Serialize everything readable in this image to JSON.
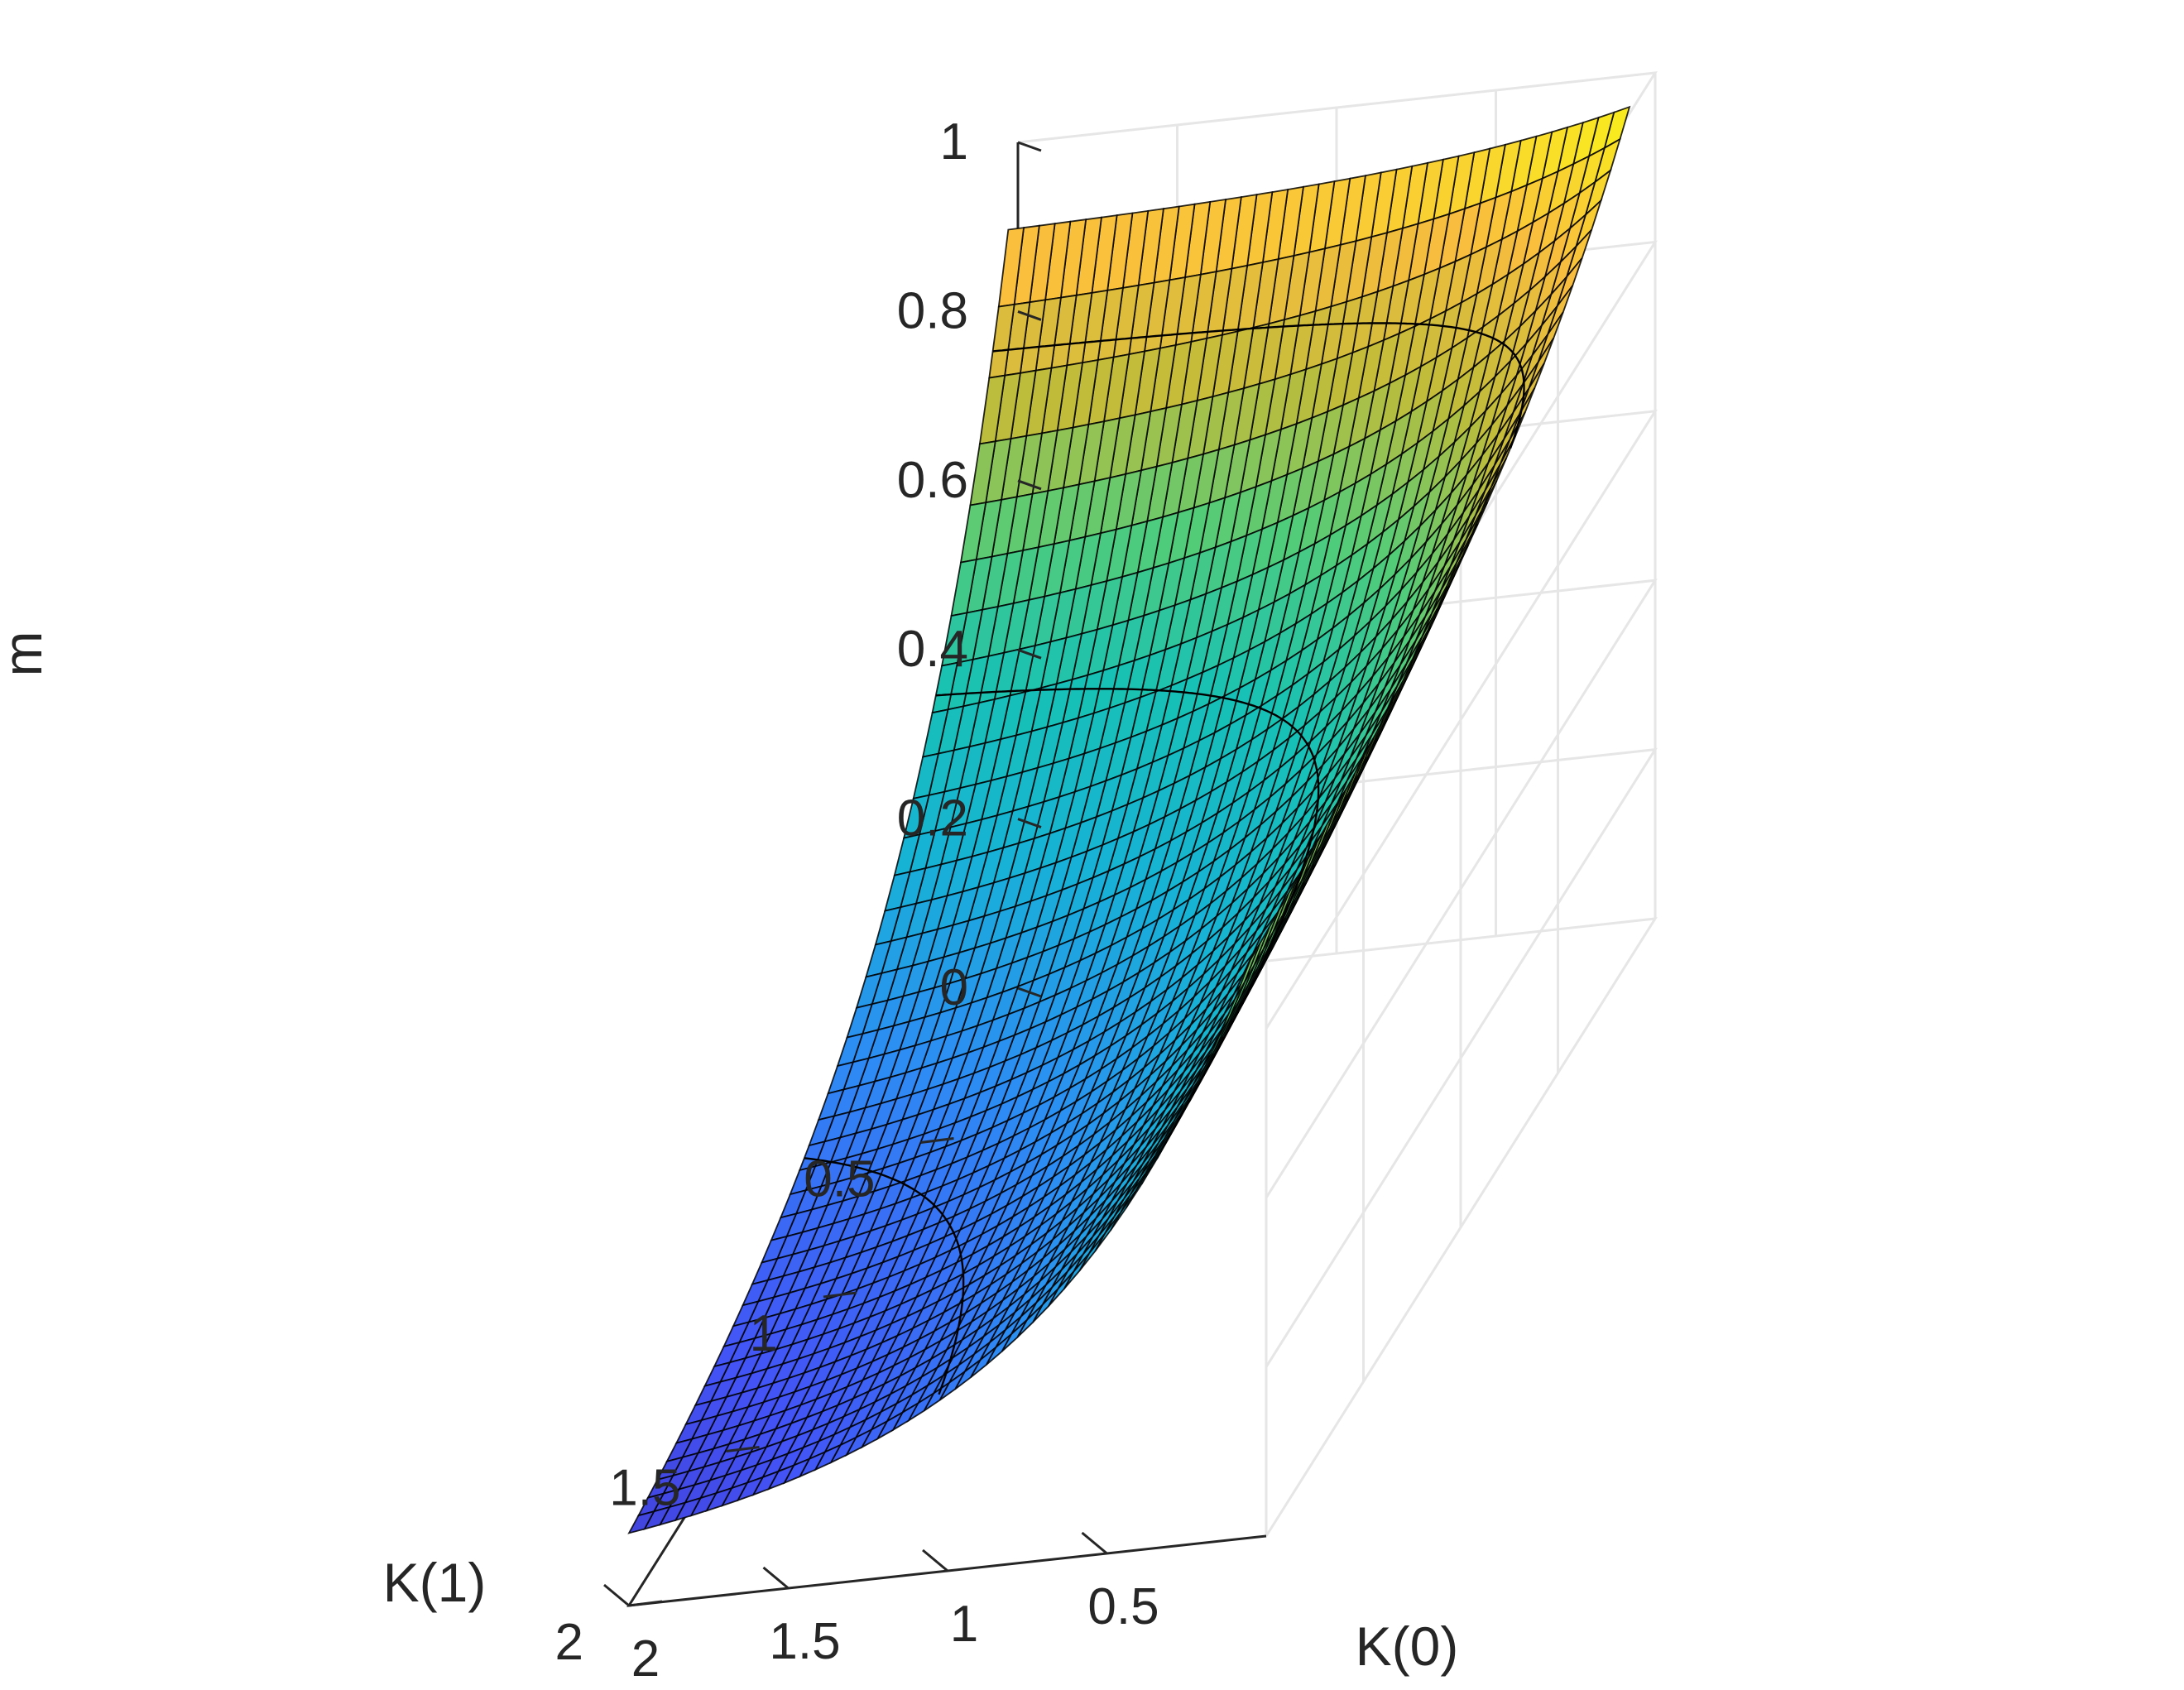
{
  "chart_data": {
    "type": "surface",
    "xlabel": "K(0)",
    "ylabel": "K(1)",
    "zlabel": "m",
    "xlim": [
      0,
      2
    ],
    "ylim": [
      0,
      2
    ],
    "zlim": [
      0,
      1
    ],
    "x_ticks": [
      0.5,
      1,
      1.5,
      2
    ],
    "y_ticks": [
      0.5,
      1,
      1.5,
      2
    ],
    "z_ticks": [
      0,
      0.2,
      0.4,
      0.6,
      0.8,
      1
    ],
    "x_tick_labels": [
      "0.5",
      "1",
      "1.5",
      "2"
    ],
    "y_tick_labels": [
      "0.5",
      "1",
      "1.5",
      "2"
    ],
    "z_tick_labels": [
      "0",
      "0.2",
      "0.4",
      "0.6",
      "0.8",
      "1"
    ],
    "surface_range": {
      "x": [
        0.05,
        2
      ],
      "y": [
        0.05,
        2
      ]
    },
    "grid_size": 40,
    "contour_levels": [
      0.2,
      0.5,
      0.8
    ],
    "colormap": "parula",
    "colormap_stops": [
      "#3e26a8",
      "#4353f6",
      "#2d8cf4",
      "#17b2d6",
      "#17c1b5",
      "#52cc79",
      "#c0bc3a",
      "#f9bd3e",
      "#f9fb14"
    ],
    "grid": true,
    "sample_points": [
      {
        "x": 0.05,
        "y": 0.05,
        "z": 0.98
      },
      {
        "x": 0.05,
        "y": 2,
        "z": 0.91
      },
      {
        "x": 2,
        "y": 0.05,
        "z": 0.66
      },
      {
        "x": 2,
        "y": 2,
        "z": 0.0
      }
    ]
  }
}
